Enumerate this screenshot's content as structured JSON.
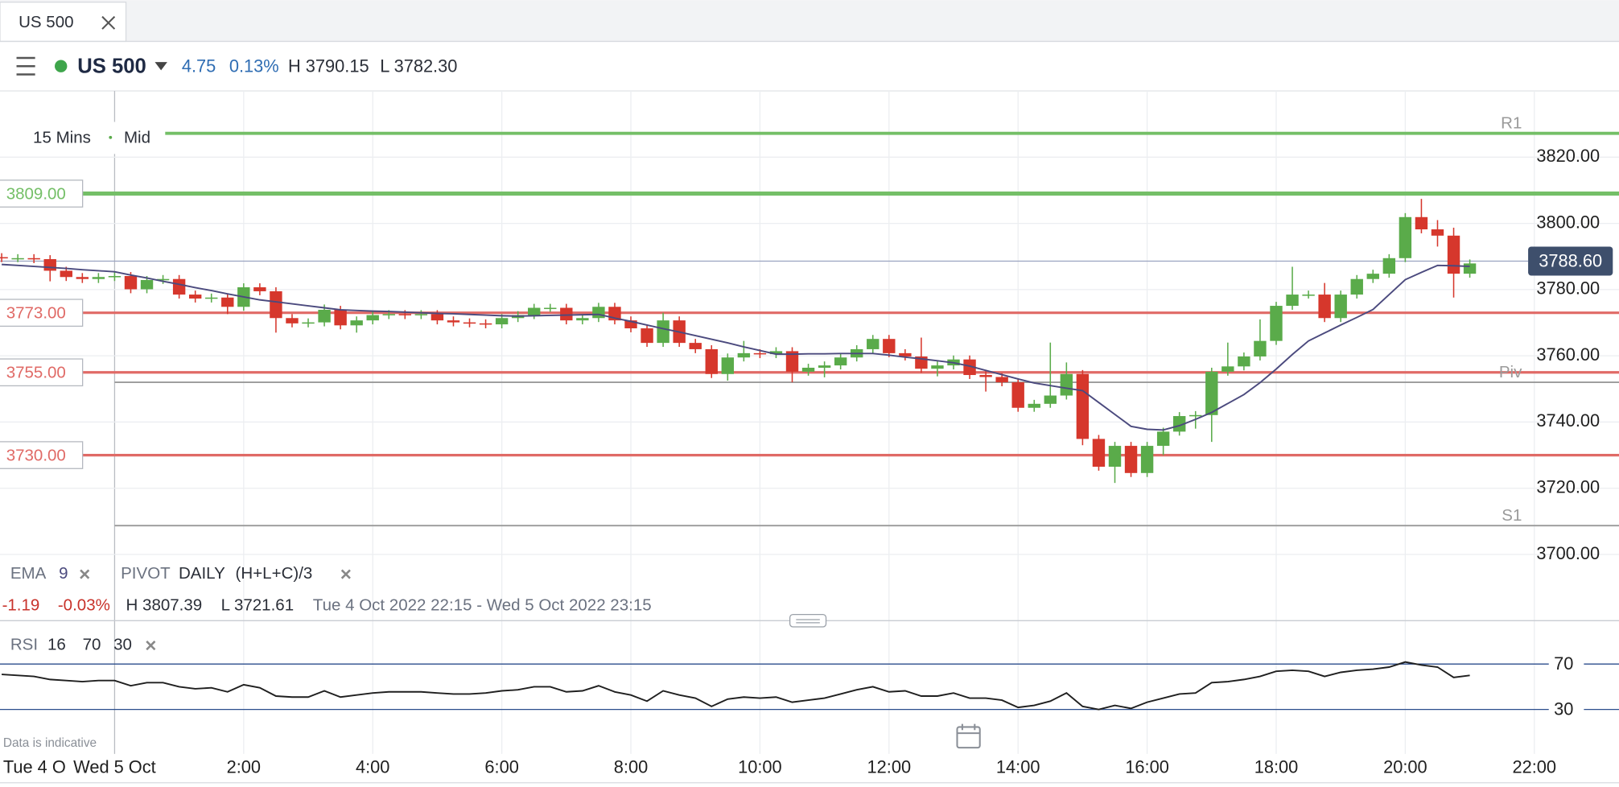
{
  "tab": {
    "title": "US 500"
  },
  "header": {
    "instrument": "US 500",
    "change": "4.75",
    "change_pct": "0.13%",
    "high": "H 3790.15",
    "low": "L 3782.30"
  },
  "chart_controls": {
    "interval": "15 Mins",
    "price_type": "Mid"
  },
  "pivot_indicator": {
    "name": "PIVOT",
    "period": "DAILY",
    "formula": "(H+L+C)/3"
  },
  "summary": {
    "change": "-1.19",
    "change_pct": "-0.03%",
    "high": "H 3807.39",
    "low": "L 3721.61",
    "range": "Tue 4 Oct 2022 22:15 - Wed 5 Oct 2022 23:15"
  },
  "date_left": "Tue 4 O",
  "disclaimer": "Data is indicative",
  "chart_data": [
    {
      "type": "candlestick",
      "x": [
        -1.75,
        -1.5,
        -1.25,
        -1.0,
        -0.75,
        -0.5,
        -0.25,
        0,
        0.25,
        0.5,
        0.75,
        1.0,
        1.25,
        1.5,
        1.75,
        2.0,
        2.25,
        2.5,
        2.75,
        3.0,
        3.25,
        3.5,
        3.75,
        4.0,
        4.25,
        4.5,
        4.75,
        5.0,
        5.25,
        5.5,
        5.75,
        6.0,
        6.25,
        6.5,
        6.75,
        7.0,
        7.25,
        7.5,
        7.75,
        8.0,
        8.25,
        8.5,
        8.75,
        9.0,
        9.25,
        9.5,
        9.75,
        10.0,
        10.25,
        10.5,
        10.75,
        11.0,
        11.25,
        11.5,
        11.75,
        12.0,
        12.25,
        12.5,
        12.75,
        13.0,
        13.25,
        13.5,
        13.75,
        14.0,
        14.25,
        14.5,
        14.75,
        15.0,
        15.25,
        15.5,
        15.75,
        16.0,
        16.25,
        16.5,
        16.75,
        17.0,
        17.25,
        17.5,
        17.75,
        18.0,
        18.25,
        18.5,
        18.75,
        19.0,
        19.25,
        19.5,
        19.75,
        20.0,
        20.25,
        20.5,
        20.75,
        21.0
      ],
      "open": [
        3789.8,
        3789.5,
        3789.5,
        3789.2,
        3785.7,
        3783.8,
        3783.2,
        3783.8,
        3784.1,
        3780.1,
        3782.9,
        3783.2,
        3778.5,
        3777.3,
        3777.6,
        3774.8,
        3780.7,
        3779.5,
        3771.4,
        3769.8,
        3770.1,
        3773.9,
        3769.2,
        3770.7,
        3772.3,
        3772.6,
        3772.3,
        3772.6,
        3770.7,
        3770.1,
        3769.8,
        3769.5,
        3771.4,
        3772.3,
        3774.5,
        3774.5,
        3770.7,
        3771.4,
        3774.8,
        3770.7,
        3768.3,
        3763.9,
        3770.7,
        3763.9,
        3762.0,
        3754.5,
        3759.5,
        3760.8,
        3760.5,
        3761.4,
        3755.2,
        3756.4,
        3757.1,
        3759.5,
        3762.0,
        3765.1,
        3760.8,
        3759.8,
        3756.1,
        3757.1,
        3758.9,
        3754.2,
        3753.6,
        3752.0,
        3744.3,
        3745.5,
        3748.0,
        3754.5,
        3734.9,
        3726.5,
        3732.8,
        3724.6,
        3732.8,
        3737.1,
        3741.8,
        3742.1,
        3755.2,
        3756.8,
        3759.8,
        3764.5,
        3775.1,
        3778.5,
        3778.5,
        3771.4,
        3778.5,
        3783.2,
        3784.8,
        3789.5,
        3801.9,
        3798.2,
        3796.3,
        3784.8
      ],
      "high": [
        3791.0,
        3790.7,
        3790.7,
        3790.4,
        3786.9,
        3785.0,
        3785.0,
        3785.3,
        3785.3,
        3784.1,
        3784.4,
        3784.4,
        3779.7,
        3778.8,
        3778.8,
        3781.9,
        3781.9,
        3780.7,
        3772.6,
        3771.3,
        3775.5,
        3775.1,
        3771.9,
        3773.5,
        3773.8,
        3773.8,
        3773.8,
        3773.8,
        3771.9,
        3771.3,
        3771.0,
        3772.6,
        3773.5,
        3775.7,
        3775.7,
        3775.7,
        3772.6,
        3776.0,
        3776.0,
        3771.9,
        3769.5,
        3773.0,
        3771.9,
        3765.1,
        3763.2,
        3760.7,
        3764.5,
        3762.0,
        3762.6,
        3762.6,
        3757.6,
        3758.3,
        3760.7,
        3763.2,
        3766.3,
        3766.3,
        3762.0,
        3765.5,
        3758.3,
        3760.1,
        3760.1,
        3755.4,
        3754.8,
        3753.2,
        3746.7,
        3764.0,
        3758.0,
        3755.7,
        3736.1,
        3734.0,
        3734.0,
        3734.0,
        3738.3,
        3743.0,
        3743.3,
        3756.4,
        3764.0,
        3761.0,
        3771.0,
        3776.3,
        3786.9,
        3779.7,
        3782.0,
        3779.7,
        3784.4,
        3786.0,
        3790.7,
        3803.1,
        3807.4,
        3801.0,
        3798.7,
        3789.1
      ],
      "low": [
        3788.3,
        3788.3,
        3788.0,
        3782.5,
        3782.6,
        3782.0,
        3782.0,
        3782.6,
        3778.9,
        3778.9,
        3781.7,
        3777.3,
        3776.1,
        3776.1,
        3772.6,
        3773.6,
        3778.3,
        3767.0,
        3768.6,
        3768.6,
        3768.9,
        3768.0,
        3767.0,
        3769.5,
        3771.1,
        3771.1,
        3771.1,
        3769.5,
        3768.9,
        3768.6,
        3768.3,
        3768.3,
        3770.2,
        3771.1,
        3773.3,
        3769.5,
        3769.5,
        3770.2,
        3769.5,
        3767.1,
        3762.7,
        3762.7,
        3762.7,
        3760.8,
        3753.3,
        3752.5,
        3758.3,
        3759.3,
        3759.3,
        3752.0,
        3754.0,
        3753.5,
        3755.9,
        3758.3,
        3760.8,
        3759.6,
        3758.6,
        3754.9,
        3753.8,
        3755.9,
        3753.0,
        3749.2,
        3750.8,
        3743.1,
        3743.1,
        3744.3,
        3746.8,
        3733.0,
        3725.3,
        3721.6,
        3723.4,
        3723.4,
        3730.0,
        3735.9,
        3738.0,
        3734.0,
        3754.0,
        3755.6,
        3758.6,
        3763.3,
        3773.9,
        3777.3,
        3770.2,
        3770.2,
        3777.3,
        3782.0,
        3783.6,
        3788.3,
        3797.0,
        3793.0,
        3777.6,
        3783.6
      ],
      "close": [
        3789.5,
        3789.5,
        3789.2,
        3785.7,
        3783.8,
        3783.2,
        3783.8,
        3784.1,
        3780.1,
        3782.9,
        3783.2,
        3778.5,
        3777.3,
        3777.6,
        3774.8,
        3780.7,
        3779.5,
        3771.4,
        3769.8,
        3770.1,
        3773.9,
        3769.2,
        3770.7,
        3772.3,
        3772.6,
        3772.3,
        3772.6,
        3770.7,
        3770.1,
        3769.8,
        3769.5,
        3771.4,
        3772.3,
        3774.5,
        3774.5,
        3770.7,
        3771.4,
        3774.8,
        3770.7,
        3768.3,
        3763.9,
        3770.7,
        3763.9,
        3762.0,
        3754.5,
        3759.5,
        3760.8,
        3760.5,
        3761.4,
        3755.2,
        3756.4,
        3757.1,
        3759.5,
        3762.0,
        3765.1,
        3760.8,
        3759.8,
        3756.1,
        3757.1,
        3758.9,
        3754.2,
        3753.6,
        3752.0,
        3744.3,
        3745.5,
        3748.0,
        3754.5,
        3734.9,
        3726.5,
        3732.8,
        3724.6,
        3732.8,
        3737.1,
        3741.8,
        3742.1,
        3755.2,
        3756.8,
        3759.8,
        3764.5,
        3775.1,
        3778.5,
        3778.5,
        3771.4,
        3778.5,
        3783.2,
        3784.8,
        3789.5,
        3801.9,
        3798.2,
        3796.3,
        3784.8,
        3787.9
      ],
      "up_color": "#5aab4a",
      "down_color": "#d6372c",
      "ema": {
        "name": "EMA",
        "period": 9,
        "color": "#4b4a7e",
        "values": [
          3787.6,
          3787.3,
          3787.0,
          3786.7,
          3786.4,
          3786.0,
          3785.7,
          3785.4,
          3784.4,
          3783.5,
          3782.5,
          3781.6,
          3780.6,
          3779.7,
          3778.7,
          3777.8,
          3776.9,
          3776.3,
          3775.7,
          3775.1,
          3774.5,
          3773.9,
          3773.7,
          3773.5,
          3773.4,
          3773.2,
          3773.0,
          3772.8,
          3772.7,
          3772.5,
          3772.3,
          3772.1,
          3772.0,
          3772.1,
          3772.2,
          3772.3,
          3772.4,
          3772.5,
          3771.4,
          3770.4,
          3769.3,
          3768.2,
          3767.2,
          3766.1,
          3765.0,
          3763.9,
          3762.7,
          3761.6,
          3760.5,
          3760.5,
          3760.6,
          3760.6,
          3760.7,
          3760.7,
          3760.7,
          3760.2,
          3759.6,
          3759.1,
          3758.5,
          3757.9,
          3756.9,
          3755.6,
          3754.3,
          3753.0,
          3751.8,
          3751.0,
          3750.2,
          3749.5,
          3745.9,
          3742.3,
          3738.7,
          3737.8,
          3737.6,
          3738.9,
          3740.8,
          3742.9,
          3745.6,
          3748.3,
          3751.9,
          3756.0,
          3760.4,
          3764.5,
          3766.9,
          3769.3,
          3771.6,
          3774.0,
          3778.5,
          3783.0,
          3785.2,
          3787.3,
          3787.2,
          3787.0
        ]
      },
      "levels": [
        {
          "value": 3809,
          "label": "3809.00",
          "color": "#74bf67"
        },
        {
          "value": 3773,
          "label": "3773.00",
          "color": "#e06a66"
        },
        {
          "value": 3755,
          "label": "3755.00",
          "color": "#e06a66"
        },
        {
          "value": 3730,
          "label": "3730.00",
          "color": "#e06a66"
        }
      ],
      "pivots": [
        {
          "value": 3827.2,
          "label": "R1",
          "color": "#74bf67"
        },
        {
          "value": 3752.0,
          "label": "Piv",
          "color": "#9a9a9a"
        },
        {
          "value": 3708.7,
          "label": "S1",
          "color": "#9a9a9a"
        }
      ],
      "last_price": {
        "value": 3788.6,
        "label": "3788.60"
      },
      "ylim": [
        3680,
        3840
      ],
      "yticks": [
        {
          "value": 3700,
          "label": "3700.00"
        },
        {
          "value": 3720,
          "label": "3720.00"
        },
        {
          "value": 3740,
          "label": "3740.00"
        },
        {
          "value": 3760,
          "label": "3760.00"
        },
        {
          "value": 3780,
          "label": "3780.00"
        },
        {
          "value": 3800,
          "label": "3800.00"
        },
        {
          "value": 3820,
          "label": "3820.00"
        }
      ],
      "xlim": [
        -1.776,
        23.312
      ],
      "xticks": [
        {
          "value": 0,
          "label": "Wed 5 Oct"
        },
        {
          "value": 2,
          "label": "2:00"
        },
        {
          "value": 4,
          "label": "4:00"
        },
        {
          "value": 6,
          "label": "6:00"
        },
        {
          "value": 8,
          "label": "8:00"
        },
        {
          "value": 10,
          "label": "10:00"
        },
        {
          "value": 12,
          "label": "12:00"
        },
        {
          "value": 14,
          "label": "14:00"
        },
        {
          "value": 16,
          "label": "16:00"
        },
        {
          "value": 18,
          "label": "18:00"
        },
        {
          "value": 20,
          "label": "20:00"
        },
        {
          "value": 22,
          "label": "22:00"
        }
      ],
      "grid": true
    },
    {
      "type": "line",
      "title": "RSI",
      "period": 16,
      "overbought": 70,
      "oversold": 30,
      "color": "#1f1f1f",
      "band_color": "#2b4d8c",
      "x": [
        -1.75,
        -1.5,
        -1.25,
        -1.0,
        -0.75,
        -0.5,
        -0.25,
        0,
        0.25,
        0.5,
        0.75,
        1.0,
        1.25,
        1.5,
        1.75,
        2.0,
        2.25,
        2.5,
        2.75,
        3.0,
        3.25,
        3.5,
        3.75,
        4.0,
        4.25,
        4.5,
        4.75,
        5.0,
        5.25,
        5.5,
        5.75,
        6.0,
        6.25,
        6.5,
        6.75,
        7.0,
        7.25,
        7.5,
        7.75,
        8.0,
        8.25,
        8.5,
        8.75,
        9.0,
        9.25,
        9.5,
        9.75,
        10.0,
        10.25,
        10.5,
        10.75,
        11.0,
        11.25,
        11.5,
        11.75,
        12.0,
        12.25,
        12.5,
        12.75,
        13.0,
        13.25,
        13.5,
        13.75,
        14.0,
        14.25,
        14.5,
        14.75,
        15.0,
        15.25,
        15.5,
        15.75,
        16.0,
        16.25,
        16.5,
        16.75,
        17.0,
        17.25,
        17.5,
        17.75,
        18.0,
        18.25,
        18.5,
        18.75,
        19.0,
        19.25,
        19.5,
        19.75,
        20.0,
        20.25,
        20.5,
        20.75,
        21.0
      ],
      "values": [
        60.9,
        60.0,
        59.1,
        56.4,
        55.5,
        54.5,
        55.5,
        55.5,
        50.9,
        53.6,
        53.6,
        50.0,
        48.2,
        49.1,
        45.5,
        51.8,
        49.1,
        41.8,
        40.9,
        40.9,
        46.4,
        40.9,
        42.7,
        44.5,
        45.5,
        45.5,
        45.5,
        44.5,
        43.6,
        43.6,
        44.5,
        46.4,
        47.3,
        50.0,
        50.0,
        45.5,
        46.4,
        50.9,
        45.5,
        42.7,
        37.3,
        46.4,
        42.7,
        40.0,
        32.7,
        39.1,
        40.9,
        40.0,
        40.9,
        36.4,
        38.2,
        40.0,
        43.6,
        47.3,
        50.0,
        45.5,
        46.4,
        41.8,
        41.8,
        44.5,
        40.0,
        40.0,
        38.2,
        31.8,
        33.6,
        37.3,
        44.5,
        32.7,
        30.0,
        33.6,
        30.9,
        36.4,
        40.0,
        43.6,
        44.5,
        53.6,
        54.5,
        56.4,
        59.1,
        63.6,
        64.5,
        63.6,
        59.1,
        62.7,
        64.5,
        65.5,
        67.3,
        71.8,
        69.1,
        67.3,
        58.2,
        60.0
      ],
      "ylim": [
        0,
        100
      ],
      "yticks": [
        70,
        30
      ],
      "xlim": [
        -1.776,
        23.312
      ]
    }
  ]
}
